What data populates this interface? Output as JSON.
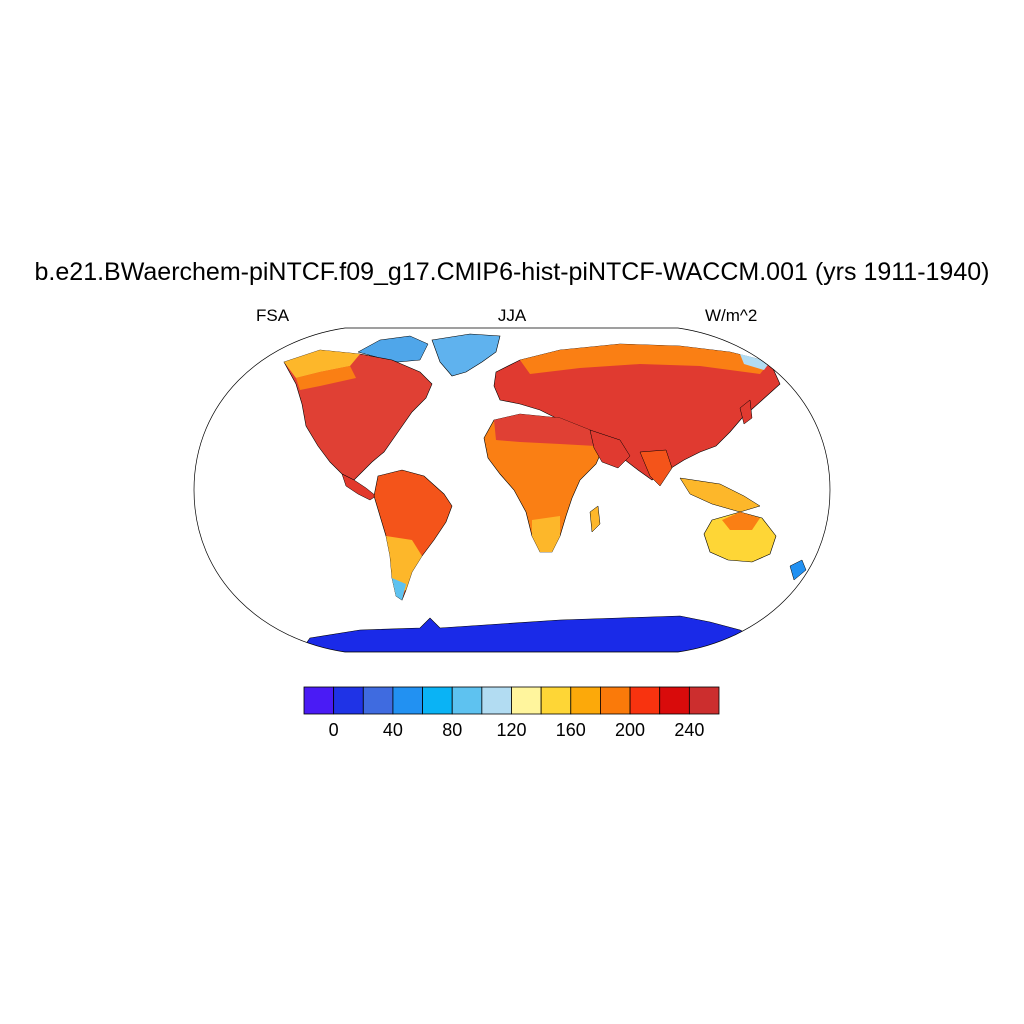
{
  "title": "b.e21.BWaerchem-piNTCF.f09_g17.CMIP6-hist-piNTCF-WACCM.001 (yrs 1911-1940)",
  "left_label": "FSA",
  "center_label": "JJA",
  "right_label": "W/m^2",
  "colorbar": {
    "colors": [
      "#4a1bf5",
      "#1f33e6",
      "#3f6be0",
      "#2291f2",
      "#0ab3f5",
      "#5ec2f0",
      "#b2dcf2",
      "#fff59d",
      "#fed636",
      "#fca90a",
      "#fa7a0a",
      "#f8330f",
      "#d90b0b",
      "#cc2e2e"
    ],
    "ticks": [
      "0",
      "40",
      "80",
      "120",
      "160",
      "200",
      "240"
    ],
    "tick_values": [
      0,
      40,
      80,
      120,
      160,
      200,
      240
    ],
    "range": [
      -20,
      260
    ]
  },
  "map": {
    "projection": "Robinson",
    "ocean_color": "#ffffff"
  }
}
